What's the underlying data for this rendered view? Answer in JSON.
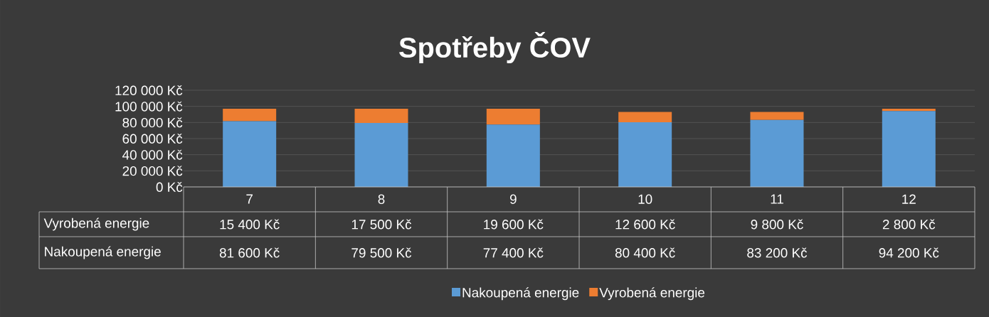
{
  "chart_data": {
    "type": "bar",
    "title": "Spotřeby ČOV",
    "stacked": true,
    "grid": "y",
    "legend": "bottom",
    "categories": [
      "7",
      "8",
      "9",
      "10",
      "11",
      "12"
    ],
    "series": [
      {
        "name": "Nakoupená energie",
        "color": "#5b9bd5",
        "values": [
          81600,
          79500,
          77400,
          80400,
          83200,
          94200
        ],
        "value_labels": [
          "81 600 Kč",
          "79 500 Kč",
          "77 400 Kč",
          "80 400 Kč",
          "83 200 Kč",
          "94 200 Kč"
        ]
      },
      {
        "name": "Vyrobená energie",
        "color": "#ed7d31",
        "values": [
          15400,
          17500,
          19600,
          12600,
          9800,
          2800
        ],
        "value_labels": [
          "15 400 Kč",
          "17 500 Kč",
          "19 600 Kč",
          "12 600 Kč",
          "9 800 Kč",
          "2 800 Kč"
        ]
      }
    ],
    "ylim": [
      0,
      120000
    ],
    "yticks": [
      {
        "value": 0,
        "label": "0 Kč"
      },
      {
        "value": 20000,
        "label": "20 000 Kč"
      },
      {
        "value": 40000,
        "label": "40 000 Kč"
      },
      {
        "value": 60000,
        "label": "60 000 Kč"
      },
      {
        "value": 80000,
        "label": "80 000 Kč"
      },
      {
        "value": 100000,
        "label": "100 000 Kč"
      },
      {
        "value": 120000,
        "label": "120 000 Kč"
      }
    ]
  }
}
